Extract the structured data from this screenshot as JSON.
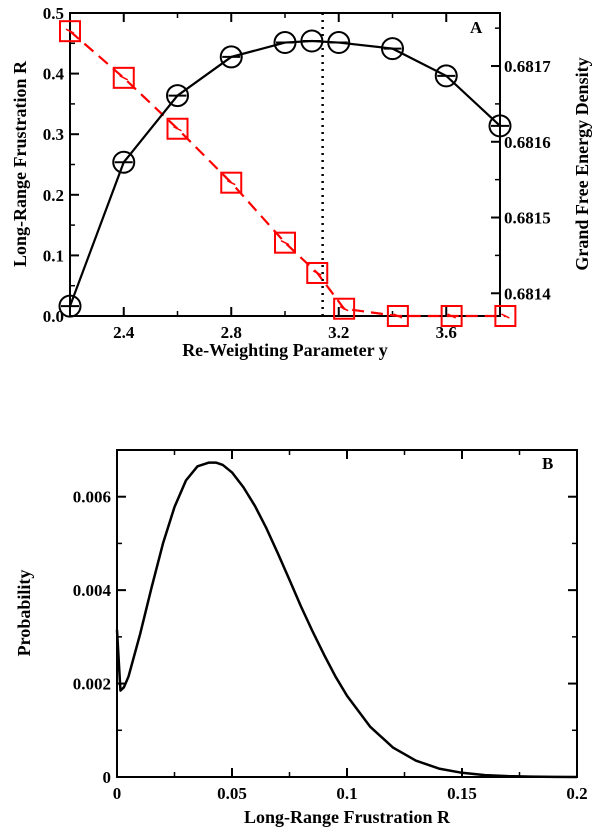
{
  "chart_data": [
    {
      "panel_label": "A",
      "type": "line",
      "xlabel": "Re-Weighting Parameter y",
      "ylabel": "Long-Range Frustration R",
      "y2label": "Grand Free Energy Density",
      "xlim": [
        2.2,
        3.8
      ],
      "ylim": [
        0,
        0.5
      ],
      "y2lim": [
        0.68137,
        0.68177
      ],
      "xticks": [
        "2.4",
        "2.8",
        "3.2",
        "3.6"
      ],
      "yticks": [
        "0.0",
        "0.1",
        "0.2",
        "0.3",
        "0.4",
        "0.5"
      ],
      "y2ticks": [
        "0.6814",
        "0.6815",
        "0.6816",
        "0.6817"
      ],
      "vline_x": 3.14,
      "series": [
        {
          "axis": "left",
          "color": "#ff0000",
          "marker": "square",
          "linestyle": "dashed",
          "x": [
            2.2,
            2.4,
            2.6,
            2.8,
            3.0,
            3.12,
            3.22,
            3.42,
            3.62,
            3.82
          ],
          "y": [
            0.47,
            0.393,
            0.309,
            0.22,
            0.121,
            0.071,
            0.012,
            0.0,
            0.0,
            0.0
          ]
        },
        {
          "axis": "right",
          "color": "#000000",
          "marker": "circle",
          "linestyle": "solid",
          "x": [
            2.2,
            2.4,
            2.6,
            2.8,
            3.0,
            3.1,
            3.2,
            3.4,
            3.6,
            3.8
          ],
          "y": [
            0.681383,
            0.681573,
            0.681661,
            0.681712,
            0.681731,
            0.681733,
            0.681731,
            0.681723,
            0.681687,
            0.681621
          ]
        }
      ]
    },
    {
      "panel_label": "B",
      "type": "line",
      "xlabel": "Long-Range Frustration R",
      "ylabel": "Probability",
      "xlim": [
        0,
        0.2
      ],
      "ylim": [
        0,
        0.007
      ],
      "xticks": [
        "0",
        "0.05",
        "0.1",
        "0.15",
        "0.2"
      ],
      "yticks": [
        "0",
        "0.002",
        "0.004",
        "0.006"
      ],
      "series": [
        {
          "color": "#000000",
          "linestyle": "solid",
          "x": [
            0.0,
            0.0015,
            0.003,
            0.005,
            0.01,
            0.015,
            0.02,
            0.025,
            0.03,
            0.035,
            0.04,
            0.043,
            0.046,
            0.05,
            0.055,
            0.06,
            0.065,
            0.07,
            0.075,
            0.08,
            0.085,
            0.09,
            0.095,
            0.1,
            0.11,
            0.12,
            0.13,
            0.14,
            0.15,
            0.16,
            0.17,
            0.18,
            0.19,
            0.2
          ],
          "y": [
            0.00315,
            0.00185,
            0.00192,
            0.00215,
            0.00305,
            0.00405,
            0.005,
            0.00578,
            0.00635,
            0.00665,
            0.00673,
            0.00673,
            0.00668,
            0.00652,
            0.0062,
            0.0058,
            0.00532,
            0.00478,
            0.00422,
            0.00365,
            0.00312,
            0.00262,
            0.00215,
            0.00174,
            0.00108,
            0.00063,
            0.00035,
            0.00018,
            9e-05,
            4e-05,
            1.8e-05,
            8e-06,
            3e-06,
            1e-06
          ]
        }
      ]
    }
  ]
}
